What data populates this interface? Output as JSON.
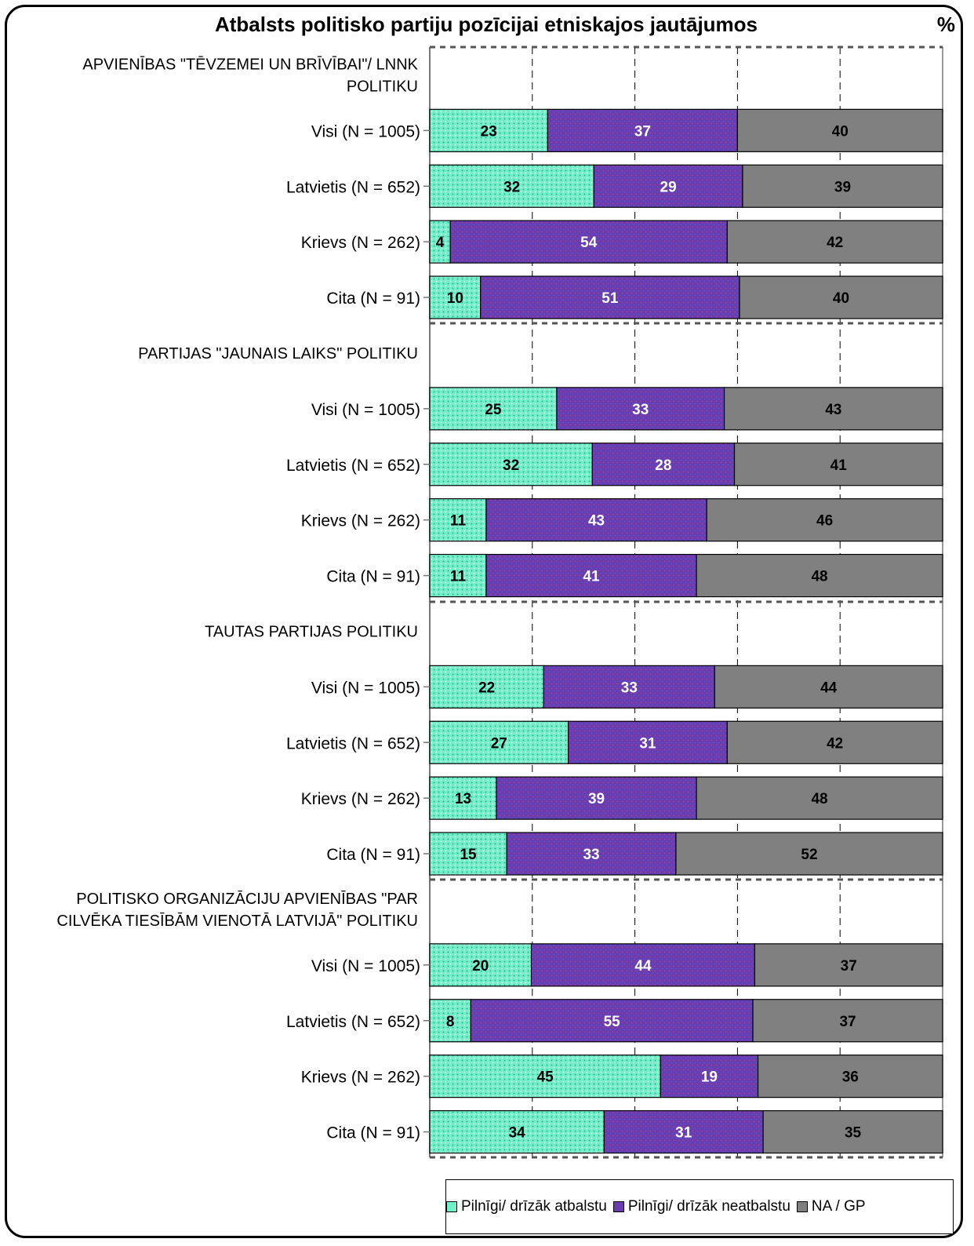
{
  "title": "Atbalsts politisko partiju pozīcijai etniskajos jautājumos",
  "unit": "%",
  "colors": {
    "support": "#6FF0C8",
    "oppose": "#6A3CB0",
    "na": "#808080"
  },
  "legend": [
    {
      "label": "Pilnīgi/ drīzāk atbalstu",
      "color_key": "support"
    },
    {
      "label": "Pilnīgi/ drīzāk neatbalstu",
      "color_key": "oppose"
    },
    {
      "label": "NA / GP",
      "color_key": "na"
    }
  ],
  "chart_data": {
    "type": "bar",
    "orientation": "horizontal",
    "stacked": true,
    "xlim": [
      0,
      100
    ],
    "series": [
      {
        "name": "Pilnīgi/ drīzāk atbalstu"
      },
      {
        "name": "Pilnīgi/ drīzāk neatbalstu"
      },
      {
        "name": "NA / GP"
      }
    ],
    "groups": [
      {
        "heading": [
          "APVIENĪBAS \"TĒVZEMEI UN BRĪVĪBAI\"/ LNNK",
          "POLITIKU"
        ],
        "rows": [
          {
            "label": "Visi (N = 1005)",
            "values": [
              23,
              37,
              40
            ]
          },
          {
            "label": "Latvietis (N = 652)",
            "values": [
              32,
              29,
              39
            ]
          },
          {
            "label": "Krievs (N = 262)",
            "values": [
              4,
              54,
              42
            ]
          },
          {
            "label": "Cita (N = 91)",
            "values": [
              10,
              51,
              40
            ]
          }
        ]
      },
      {
        "heading": [
          "PARTIJAS \"JAUNAIS LAIKS\" POLITIKU"
        ],
        "rows": [
          {
            "label": "Visi (N = 1005)",
            "values": [
              25,
              33,
              43
            ]
          },
          {
            "label": "Latvietis (N = 652)",
            "values": [
              32,
              28,
              41
            ]
          },
          {
            "label": "Krievs (N = 262)",
            "values": [
              11,
              43,
              46
            ]
          },
          {
            "label": "Cita (N = 91)",
            "values": [
              11,
              41,
              48
            ]
          }
        ]
      },
      {
        "heading": [
          "TAUTAS PARTIJAS POLITIKU"
        ],
        "rows": [
          {
            "label": "Visi (N = 1005)",
            "values": [
              22,
              33,
              44
            ]
          },
          {
            "label": "Latvietis (N = 652)",
            "values": [
              27,
              31,
              42
            ]
          },
          {
            "label": "Krievs (N = 262)",
            "values": [
              13,
              39,
              48
            ]
          },
          {
            "label": "Cita (N = 91)",
            "values": [
              15,
              33,
              52
            ]
          }
        ]
      },
      {
        "heading": [
          "POLITISKO ORGANIZĀCIJU APVIENĪBAS \"PAR",
          "CILVĒKA TIESĪBĀM VIENOTĀ LATVIJĀ\" POLITIKU"
        ],
        "rows": [
          {
            "label": "Visi (N = 1005)",
            "values": [
              20,
              44,
              37
            ]
          },
          {
            "label": "Latvietis (N = 652)",
            "values": [
              8,
              55,
              37
            ]
          },
          {
            "label": "Krievs (N = 262)",
            "values": [
              45,
              19,
              36
            ]
          },
          {
            "label": "Cita (N = 91)",
            "values": [
              34,
              31,
              35
            ]
          }
        ]
      }
    ]
  }
}
